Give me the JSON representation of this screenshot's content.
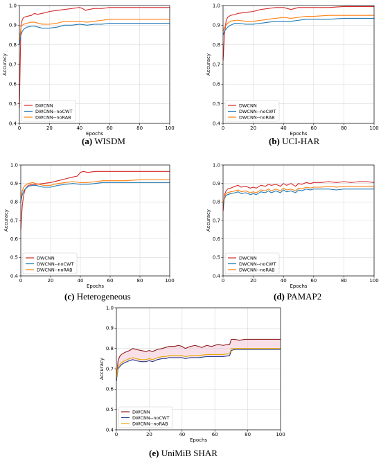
{
  "colors": {
    "dwcnn": "#d62728",
    "nocwt": "#1f77b4",
    "norab": "#ff7f0e",
    "unimib_dwcnn": "#8b1a1a",
    "unimib_nocwt": "#1f3b8c",
    "unimib_norab": "#e6a800",
    "band": "#f4c7d6"
  },
  "chart_data": [
    {
      "id": "wisdm",
      "type": "line",
      "caption_label": "(a)",
      "caption_text": "WISDM",
      "xlabel": "Epochs",
      "ylabel": "Accuracy",
      "xlim": [
        0,
        100
      ],
      "ylim": [
        0.4,
        1.0
      ],
      "xticks": [
        "0",
        "20",
        "40",
        "60",
        "80",
        "100"
      ],
      "yticks": [
        "0.4",
        "0.5",
        "0.6",
        "0.7",
        "0.8",
        "0.9",
        "1.0"
      ],
      "grid": true,
      "legend": "lower-left",
      "series": [
        {
          "name": "DWCNN",
          "color_key": "dwcnn",
          "x": [
            0,
            1,
            2,
            3,
            5,
            8,
            10,
            12,
            15,
            18,
            20,
            25,
            30,
            35,
            40,
            42,
            44,
            46,
            50,
            55,
            60,
            70,
            80,
            90,
            100
          ],
          "y": [
            0.48,
            0.9,
            0.93,
            0.94,
            0.945,
            0.95,
            0.96,
            0.955,
            0.96,
            0.965,
            0.97,
            0.975,
            0.98,
            0.985,
            0.99,
            0.985,
            0.975,
            0.98,
            0.985,
            0.985,
            0.99,
            0.99,
            0.99,
            0.99,
            0.99
          ]
        },
        {
          "name": "DWCNN--noCWT",
          "color_key": "nocwt",
          "x": [
            0,
            1,
            2,
            3,
            5,
            8,
            10,
            15,
            20,
            25,
            30,
            35,
            40,
            45,
            50,
            55,
            60,
            70,
            80,
            90,
            100
          ],
          "y": [
            0.8,
            0.85,
            0.87,
            0.88,
            0.89,
            0.895,
            0.895,
            0.885,
            0.885,
            0.89,
            0.9,
            0.9,
            0.905,
            0.9,
            0.905,
            0.905,
            0.91,
            0.91,
            0.91,
            0.91,
            0.91
          ]
        },
        {
          "name": "DWCNN--noRAB",
          "color_key": "norab",
          "x": [
            0,
            1,
            2,
            3,
            5,
            8,
            10,
            15,
            20,
            25,
            30,
            35,
            40,
            45,
            50,
            55,
            60,
            70,
            80,
            90,
            100
          ],
          "y": [
            0.82,
            0.89,
            0.9,
            0.905,
            0.91,
            0.915,
            0.915,
            0.905,
            0.905,
            0.91,
            0.92,
            0.92,
            0.92,
            0.915,
            0.92,
            0.925,
            0.93,
            0.93,
            0.93,
            0.93,
            0.93
          ]
        }
      ]
    },
    {
      "id": "ucihar",
      "type": "line",
      "caption_label": "(b)",
      "caption_text": "UCI-HAR",
      "xlabel": "Epochs",
      "ylabel": "Accuracy",
      "xlim": [
        0,
        100
      ],
      "ylim": [
        0.4,
        1.0
      ],
      "xticks": [
        "0",
        "20",
        "40",
        "60",
        "80",
        "100"
      ],
      "yticks": [
        "0.4",
        "0.5",
        "0.6",
        "0.7",
        "0.8",
        "0.9",
        "1.0"
      ],
      "grid": true,
      "legend": "lower-left",
      "series": [
        {
          "name": "DWCNN",
          "color_key": "dwcnn",
          "x": [
            0,
            1,
            2,
            3,
            5,
            8,
            10,
            15,
            20,
            25,
            30,
            35,
            40,
            45,
            50,
            55,
            60,
            70,
            80,
            90,
            100
          ],
          "y": [
            0.72,
            0.86,
            0.92,
            0.94,
            0.95,
            0.955,
            0.96,
            0.965,
            0.97,
            0.98,
            0.985,
            0.99,
            0.99,
            0.98,
            0.99,
            0.99,
            0.99,
            0.99,
            0.995,
            0.995,
            0.995
          ]
        },
        {
          "name": "DWCNN--noCWT",
          "color_key": "nocwt",
          "x": [
            0,
            1,
            2,
            3,
            5,
            8,
            10,
            15,
            20,
            25,
            30,
            35,
            40,
            45,
            50,
            55,
            60,
            70,
            80,
            90,
            100
          ],
          "y": [
            0.85,
            0.87,
            0.88,
            0.89,
            0.9,
            0.91,
            0.91,
            0.905,
            0.905,
            0.91,
            0.915,
            0.92,
            0.92,
            0.92,
            0.925,
            0.93,
            0.93,
            0.93,
            0.935,
            0.935,
            0.935
          ]
        },
        {
          "name": "DWCNN--noRAB",
          "color_key": "norab",
          "x": [
            0,
            1,
            2,
            3,
            5,
            8,
            10,
            15,
            20,
            25,
            30,
            35,
            40,
            45,
            50,
            55,
            60,
            70,
            80,
            90,
            100
          ],
          "y": [
            0.87,
            0.89,
            0.9,
            0.91,
            0.92,
            0.925,
            0.925,
            0.92,
            0.92,
            0.925,
            0.93,
            0.935,
            0.94,
            0.935,
            0.94,
            0.945,
            0.945,
            0.95,
            0.95,
            0.95,
            0.95
          ]
        }
      ]
    },
    {
      "id": "heterogeneous",
      "type": "line",
      "caption_label": "(c)",
      "caption_text": "Heterogeneous",
      "xlabel": "Epochs",
      "ylabel": "Accuracy",
      "xlim": [
        0,
        100
      ],
      "ylim": [
        0.4,
        1.0
      ],
      "xticks": [
        "0",
        "20",
        "40",
        "60",
        "80",
        "100"
      ],
      "yticks": [
        "0.4",
        "0.5",
        "0.6",
        "0.7",
        "0.8",
        "0.9",
        "1.0"
      ],
      "grid": true,
      "legend": "lower-left",
      "series": [
        {
          "name": "DWCNN",
          "color_key": "dwcnn",
          "x": [
            0,
            1,
            2,
            3,
            5,
            8,
            10,
            15,
            20,
            25,
            30,
            35,
            38,
            40,
            42,
            45,
            50,
            55,
            60,
            70,
            80,
            90,
            100
          ],
          "y": [
            0.65,
            0.78,
            0.84,
            0.87,
            0.89,
            0.895,
            0.895,
            0.9,
            0.905,
            0.915,
            0.925,
            0.935,
            0.94,
            0.96,
            0.965,
            0.96,
            0.965,
            0.965,
            0.965,
            0.965,
            0.965,
            0.965,
            0.965
          ]
        },
        {
          "name": "DWCNN--noCWT",
          "color_key": "nocwt",
          "x": [
            0,
            1,
            2,
            3,
            5,
            8,
            10,
            15,
            20,
            25,
            30,
            35,
            40,
            45,
            50,
            55,
            60,
            70,
            80,
            90,
            100
          ],
          "y": [
            0.8,
            0.84,
            0.86,
            0.87,
            0.885,
            0.89,
            0.89,
            0.88,
            0.88,
            0.89,
            0.895,
            0.9,
            0.895,
            0.895,
            0.9,
            0.905,
            0.905,
            0.905,
            0.905,
            0.905,
            0.905
          ]
        },
        {
          "name": "DWCNN--noRAB",
          "color_key": "norab",
          "x": [
            0,
            1,
            2,
            3,
            5,
            8,
            10,
            15,
            20,
            25,
            30,
            35,
            40,
            45,
            50,
            55,
            60,
            70,
            80,
            90,
            100
          ],
          "y": [
            0.82,
            0.86,
            0.88,
            0.89,
            0.9,
            0.905,
            0.9,
            0.89,
            0.89,
            0.9,
            0.905,
            0.91,
            0.905,
            0.905,
            0.91,
            0.915,
            0.915,
            0.915,
            0.92,
            0.92,
            0.92
          ]
        }
      ]
    },
    {
      "id": "pamap2",
      "type": "line",
      "caption_label": "(d)",
      "caption_text": "PAMAP2",
      "xlabel": "Epochs",
      "ylabel": "Accuracy",
      "xlim": [
        0,
        100
      ],
      "ylim": [
        0.4,
        1.0
      ],
      "xticks": [
        "0",
        "20",
        "40",
        "60",
        "80",
        "100"
      ],
      "yticks": [
        "0.4",
        "0.5",
        "0.6",
        "0.7",
        "0.8",
        "0.9",
        "1.0"
      ],
      "grid": true,
      "legend": "lower-left",
      "series": [
        {
          "name": "DWCNN",
          "color_key": "dwcnn",
          "x": [
            0,
            1,
            2,
            3,
            5,
            8,
            10,
            12,
            15,
            18,
            20,
            22,
            25,
            28,
            30,
            32,
            35,
            38,
            40,
            42,
            45,
            48,
            50,
            52,
            55,
            58,
            60,
            65,
            70,
            75,
            80,
            85,
            90,
            95,
            100
          ],
          "y": [
            0.75,
            0.84,
            0.86,
            0.87,
            0.875,
            0.885,
            0.89,
            0.88,
            0.885,
            0.875,
            0.88,
            0.875,
            0.89,
            0.885,
            0.895,
            0.89,
            0.895,
            0.885,
            0.9,
            0.89,
            0.9,
            0.885,
            0.9,
            0.895,
            0.905,
            0.9,
            0.905,
            0.905,
            0.91,
            0.905,
            0.91,
            0.905,
            0.91,
            0.91,
            0.905
          ]
        },
        {
          "name": "DWCNN--noCWT",
          "color_key": "nocwt",
          "x": [
            0,
            1,
            2,
            3,
            5,
            8,
            10,
            12,
            15,
            18,
            20,
            22,
            25,
            28,
            30,
            32,
            35,
            38,
            40,
            42,
            45,
            48,
            50,
            52,
            55,
            58,
            60,
            65,
            70,
            75,
            80,
            85,
            90,
            95,
            100
          ],
          "y": [
            0.78,
            0.82,
            0.835,
            0.84,
            0.845,
            0.85,
            0.855,
            0.845,
            0.85,
            0.84,
            0.845,
            0.84,
            0.855,
            0.85,
            0.86,
            0.85,
            0.86,
            0.85,
            0.865,
            0.855,
            0.86,
            0.85,
            0.865,
            0.86,
            0.87,
            0.865,
            0.87,
            0.87,
            0.87,
            0.865,
            0.87,
            0.87,
            0.87,
            0.87,
            0.87
          ]
        },
        {
          "name": "DWCNN--noRAB",
          "color_key": "norab",
          "x": [
            0,
            1,
            2,
            3,
            5,
            8,
            10,
            12,
            15,
            18,
            20,
            22,
            25,
            28,
            30,
            32,
            35,
            38,
            40,
            42,
            45,
            48,
            50,
            52,
            55,
            58,
            60,
            65,
            70,
            75,
            80,
            85,
            90,
            95,
            100
          ],
          "y": [
            0.79,
            0.83,
            0.845,
            0.85,
            0.855,
            0.86,
            0.865,
            0.855,
            0.86,
            0.85,
            0.855,
            0.85,
            0.865,
            0.86,
            0.87,
            0.86,
            0.87,
            0.86,
            0.875,
            0.865,
            0.87,
            0.86,
            0.875,
            0.87,
            0.88,
            0.875,
            0.88,
            0.88,
            0.885,
            0.88,
            0.885,
            0.885,
            0.885,
            0.885,
            0.885
          ]
        }
      ]
    },
    {
      "id": "unimib",
      "type": "line",
      "caption_label": "(e)",
      "caption_text": "UniMiB SHAR",
      "xlabel": "Epochs",
      "ylabel": "Accuracy",
      "xlim": [
        0,
        100
      ],
      "ylim": [
        0.4,
        1.0
      ],
      "xticks": [
        "0",
        "20",
        "40",
        "60",
        "80",
        "100"
      ],
      "yticks": [
        "0.4",
        "0.5",
        "0.6",
        "0.7",
        "0.8",
        "0.9",
        "1.0"
      ],
      "grid": true,
      "legend": "lower-left",
      "band": true,
      "series": [
        {
          "name": "DWCNN",
          "color_key": "unimib_dwcnn",
          "x": [
            0,
            1,
            2,
            3,
            5,
            8,
            10,
            12,
            15,
            18,
            20,
            22,
            25,
            28,
            30,
            32,
            35,
            38,
            40,
            42,
            45,
            48,
            50,
            52,
            55,
            58,
            60,
            62,
            65,
            68,
            69,
            70,
            72,
            75,
            78,
            80,
            85,
            90,
            95,
            100
          ],
          "y": [
            0.64,
            0.74,
            0.76,
            0.77,
            0.78,
            0.79,
            0.8,
            0.795,
            0.79,
            0.785,
            0.79,
            0.785,
            0.795,
            0.8,
            0.805,
            0.81,
            0.81,
            0.815,
            0.81,
            0.8,
            0.81,
            0.815,
            0.81,
            0.805,
            0.815,
            0.81,
            0.815,
            0.82,
            0.815,
            0.82,
            0.82,
            0.845,
            0.845,
            0.84,
            0.845,
            0.845,
            0.845,
            0.845,
            0.845,
            0.845
          ]
        },
        {
          "name": "DWCNN--noCWT",
          "color_key": "unimib_nocwt",
          "x": [
            0,
            1,
            2,
            3,
            5,
            8,
            10,
            12,
            15,
            18,
            20,
            22,
            25,
            28,
            30,
            32,
            35,
            38,
            40,
            42,
            45,
            48,
            50,
            55,
            60,
            65,
            69,
            70,
            72,
            75,
            80,
            85,
            90,
            95,
            100
          ],
          "y": [
            0.64,
            0.7,
            0.71,
            0.72,
            0.73,
            0.74,
            0.745,
            0.74,
            0.735,
            0.735,
            0.74,
            0.735,
            0.745,
            0.75,
            0.75,
            0.755,
            0.755,
            0.755,
            0.755,
            0.75,
            0.755,
            0.755,
            0.755,
            0.76,
            0.76,
            0.76,
            0.765,
            0.79,
            0.795,
            0.795,
            0.795,
            0.795,
            0.795,
            0.795,
            0.795
          ]
        },
        {
          "name": "DWCNN--noRAB",
          "color_key": "unimib_norab",
          "x": [
            0,
            1,
            2,
            3,
            5,
            8,
            10,
            12,
            15,
            18,
            20,
            22,
            25,
            28,
            30,
            32,
            35,
            38,
            40,
            42,
            45,
            48,
            50,
            55,
            60,
            65,
            69,
            70,
            72,
            75,
            80,
            85,
            90,
            95,
            100
          ],
          "y": [
            0.65,
            0.71,
            0.72,
            0.73,
            0.74,
            0.75,
            0.755,
            0.75,
            0.745,
            0.745,
            0.75,
            0.745,
            0.755,
            0.76,
            0.76,
            0.765,
            0.765,
            0.765,
            0.765,
            0.76,
            0.765,
            0.765,
            0.765,
            0.77,
            0.77,
            0.77,
            0.775,
            0.8,
            0.8,
            0.8,
            0.8,
            0.8,
            0.8,
            0.8,
            0.8
          ]
        }
      ]
    }
  ]
}
